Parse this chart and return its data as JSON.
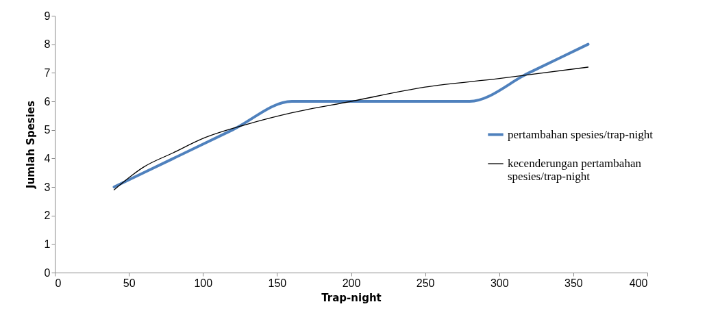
{
  "chart_data": {
    "type": "line",
    "xlabel": "Trap-night",
    "ylabel": "Jumlah Spesies",
    "xlim": [
      0,
      400
    ],
    "xticks": [
      0,
      50,
      100,
      150,
      200,
      250,
      300,
      350,
      400
    ],
    "ylim": [
      0,
      9
    ],
    "yticks": [
      0,
      1,
      2,
      3,
      4,
      5,
      6,
      7,
      8,
      9
    ],
    "grid": false,
    "legend": "right",
    "marker": "none",
    "series": [
      {
        "name": "pertambahan spesies/trap-night",
        "color": "#4f81bd",
        "x": [
          40,
          80,
          120,
          160,
          200,
          240,
          280,
          320,
          360
        ],
        "values": [
          3,
          4,
          5,
          6,
          6,
          6,
          6,
          7,
          8
        ]
      },
      {
        "name": "kecenderungan pertambahan spesies/trap-night",
        "color": "#000000",
        "x": [
          40,
          60,
          80,
          100,
          130,
          160,
          200,
          250,
          300,
          360
        ],
        "values": [
          2.9,
          3.7,
          4.2,
          4.7,
          5.2,
          5.6,
          6.0,
          6.5,
          6.8,
          7.2
        ]
      }
    ]
  }
}
